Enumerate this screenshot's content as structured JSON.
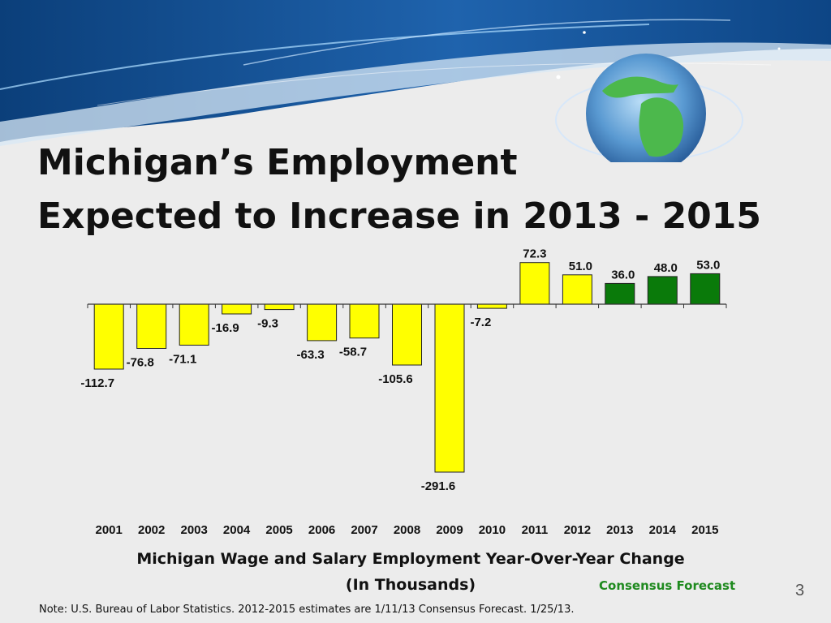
{
  "slide": {
    "title_line1": "Michigan’s Employment",
    "title_line2": "Expected to Increase in 2013 - 2015",
    "caption_line1": "Michigan Wage and Salary Employment Year-Over-Year Change",
    "caption_line2": "(In Thousands)",
    "legend_forecast": "Consensus Forecast",
    "page_number": "3",
    "note": "Note: U.S. Bureau of Labor Statistics. 2012-2015 estimates are 1/11/13 Consensus Forecast. 1/25/13."
  },
  "colors": {
    "actual": "#ffff00",
    "forecast": "#0a7a0a",
    "bar_stroke": "#222222",
    "banner_dark": "#0b3f7a",
    "banner_light": "#5fa0d8",
    "michigan": "#4cb84c"
  },
  "chart_data": {
    "type": "bar",
    "categories": [
      "2001",
      "2002",
      "2003",
      "2004",
      "2005",
      "2006",
      "2007",
      "2008",
      "2009",
      "2010",
      "2011",
      "2012",
      "2013",
      "2014",
      "2015"
    ],
    "values": [
      -112.7,
      -76.8,
      -71.1,
      -16.9,
      -9.3,
      -63.3,
      -58.7,
      -105.6,
      -291.6,
      -7.2,
      72.3,
      51.0,
      36.0,
      48.0,
      53.0
    ],
    "value_labels": [
      "-112.7",
      "-76.8",
      "-71.1",
      "-16.9",
      "-9.3",
      "-63.3",
      "-58.7",
      "-105.6",
      "-291.6",
      "-7.2",
      "72.3",
      "51.0",
      "36.0",
      "48.0",
      "53.0"
    ],
    "forecast": [
      false,
      false,
      false,
      false,
      false,
      false,
      false,
      false,
      false,
      false,
      false,
      false,
      true,
      true,
      true
    ],
    "title": "",
    "xlabel": "Michigan Wage and Salary Employment Year-Over-Year Change",
    "ylabel": "",
    "ylim": [
      -291.6,
      72.3
    ],
    "grid": false,
    "legend": "bottom-right"
  }
}
